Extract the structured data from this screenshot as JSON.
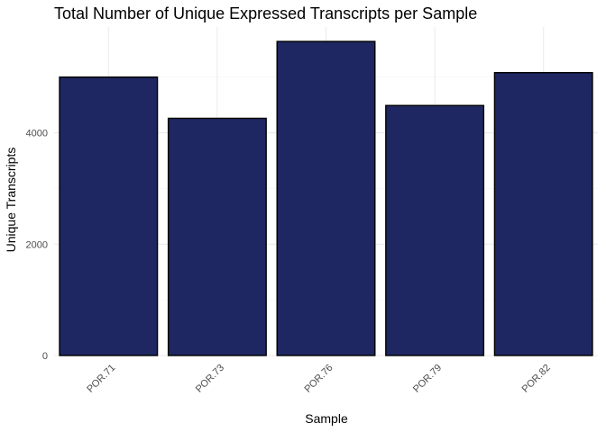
{
  "chart_data": {
    "type": "bar",
    "title": "Total Number of Unique Expressed Transcripts per Sample",
    "xlabel": "Sample",
    "ylabel": "Unique Transcripts",
    "categories": [
      "POR.71",
      "POR.73",
      "POR.76",
      "POR.79",
      "POR.82"
    ],
    "values": [
      5000,
      4260,
      5640,
      4490,
      5080
    ],
    "yticks": [
      0,
      2000,
      4000
    ],
    "ylim": [
      0,
      5900
    ],
    "grid": true,
    "bar_color": "#1e2761",
    "bar_outline": "#000000"
  }
}
